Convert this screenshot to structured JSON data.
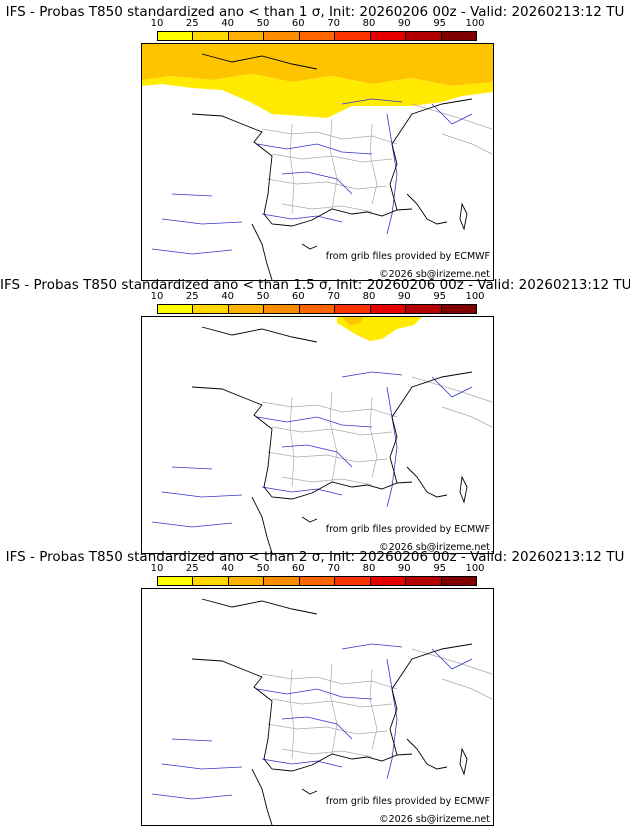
{
  "colors": {
    "legend": [
      "#ffff00",
      "#ffd800",
      "#ffb000",
      "#ff8c00",
      "#ff6600",
      "#ff3300",
      "#e60000",
      "#b30000",
      "#800000"
    ],
    "coast": "#000000",
    "rivers": "#3333cc",
    "borders": "#aaaaaa",
    "prob_low": "#ffea00",
    "prob_mid": "#ffc400"
  },
  "legend": {
    "ticks": [
      "10",
      "25",
      "40",
      "50",
      "60",
      "70",
      "80",
      "90",
      "95",
      "100"
    ]
  },
  "credits": {
    "source": "from grib files provided by ECMWF",
    "copyright": "©2026 sb@irizeme.net"
  },
  "panels": [
    {
      "title": "IFS - Probas T850  standardized ano < than 1 σ, Init: 20260206 00z - Valid: 20260213:12 TU",
      "coverage": "large"
    },
    {
      "title": "IFS - Probas T850  standardized ano < than 1.5 σ, Init: 20260206 00z - Valid: 20260213:12 TU",
      "coverage": "small"
    },
    {
      "title": "IFS - Probas T850  standardized ano < than 2 σ, Init: 20260206 00z - Valid: 20260213:12 TU",
      "coverage": "none"
    }
  ]
}
